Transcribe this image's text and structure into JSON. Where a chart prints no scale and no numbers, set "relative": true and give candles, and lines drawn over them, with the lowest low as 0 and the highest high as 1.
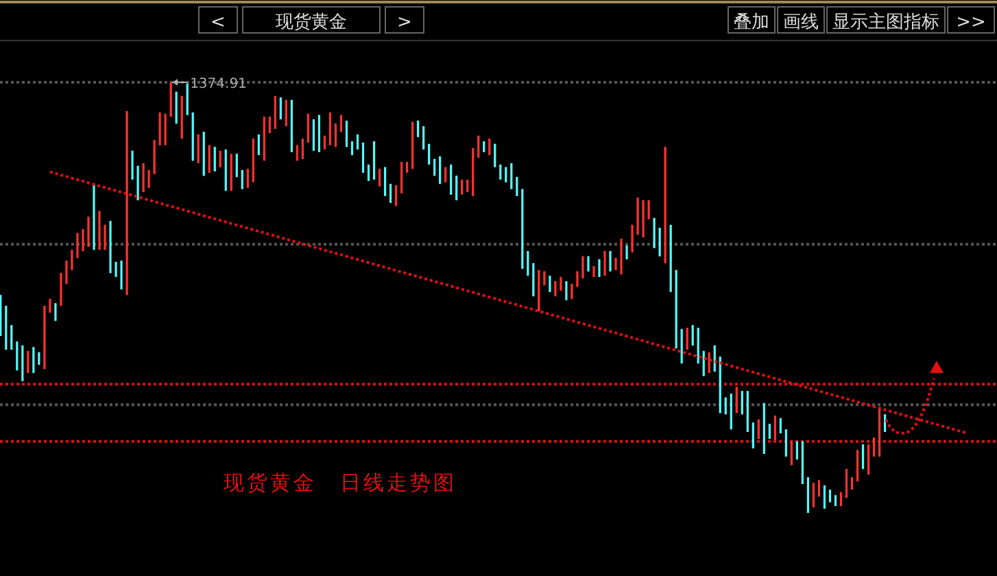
{
  "chart_data": {
    "type": "candlestick",
    "title": "现货黄金",
    "relative": true,
    "categories": [
      null,
      null,
      null,
      null,
      null,
      null,
      null,
      null,
      null,
      null,
      null,
      null,
      null,
      null,
      null,
      null,
      null,
      null,
      null,
      null,
      null,
      null,
      null,
      null,
      null,
      null,
      null,
      null,
      null,
      null,
      null,
      null,
      null,
      null,
      null,
      null,
      null,
      null,
      null,
      null,
      null,
      null,
      null,
      null,
      null,
      null,
      null,
      null,
      null,
      null,
      null,
      null,
      null,
      null,
      null,
      null,
      null,
      null,
      null,
      null,
      null,
      null,
      null,
      null,
      null,
      null,
      null,
      null,
      null,
      null,
      null,
      null,
      null,
      null,
      null,
      null,
      null,
      null,
      null,
      null,
      null,
      null,
      null,
      null,
      null,
      null,
      null,
      null,
      null,
      null,
      null,
      null,
      null,
      null,
      null,
      null,
      null,
      null,
      null,
      null,
      null,
      null,
      null,
      null,
      null,
      null,
      null,
      null,
      null,
      null,
      null,
      null,
      null,
      null,
      null,
      null,
      null,
      null,
      null,
      null,
      null,
      null,
      null,
      null,
      null,
      null,
      null,
      null,
      null,
      null,
      null,
      null,
      null,
      null,
      null,
      null,
      null,
      null,
      null,
      null,
      null,
      null,
      null,
      null,
      null,
      null,
      null,
      null,
      null,
      null,
      null,
      null,
      null,
      null,
      null,
      null,
      null,
      null,
      null,
      null,
      null,
      null,
      null,
      null,
      null,
      null,
      null,
      null,
      null,
      null,
      null,
      null,
      null,
      null,
      null,
      null,
      null
    ],
    "colors": [
      "#54fcfc",
      "#54fcfc",
      "#54fcfc",
      "#54fcfc",
      "#54fcfc",
      "#ff3232",
      "#54fcfc",
      "#54fcfc",
      "#ff3232",
      "#ff3232",
      "#54fcfc",
      "#ff3232",
      "#ff3232",
      "#ff3232",
      "#ff3232",
      "#ff3232",
      "#ff3232",
      "#54fcfc",
      "#ff3232",
      "#ff3232",
      "#54fcfc",
      "#54fcfc",
      "#54fcfc",
      "#ff3232",
      "#54fcfc",
      "#54fcfc",
      "#ff3232",
      "#ff3232",
      "#ff3232",
      "#ff3232",
      "#ff3232",
      "#ff3232",
      "#54fcfc",
      "#ff3232",
      "#54fcfc",
      "#54fcfc",
      "#ff3232",
      "#54fcfc",
      "#ff3232",
      "#54fcfc",
      "#ff3232",
      "#54fcfc",
      "#ff3232",
      "#54fcfc",
      "#54fcfc",
      "#ff3232",
      "#ff3232",
      "#54fcfc",
      "#ff3232",
      "#ff3232",
      "#ff3232",
      "#54fcfc",
      "#ff3232",
      "#54fcfc",
      "#ff3232",
      "#ff3232",
      "#ff3232",
      "#54fcfc",
      "#54fcfc",
      "#ff3232",
      "#ff3232",
      "#ff3232",
      "#ff3232",
      "#54fcfc",
      "#54fcfc",
      "#54fcfc",
      "#54fcfc",
      "#54fcfc",
      "#54fcfc",
      "#ff3232",
      "#54fcfc",
      "#54fcfc",
      "#ff3232",
      "#ff3232",
      "#ff3232",
      "#ff3232",
      "#54fcfc",
      "#54fcfc",
      "#54fcfc",
      "#54fcfc",
      "#54fcfc",
      "#ff3232",
      "#54fcfc",
      "#54fcfc",
      "#ff3232",
      "#ff3232",
      "#ff3232",
      "#ff3232",
      "#54fcfc",
      "#ff3232",
      "#54fcfc",
      "#54fcfc",
      "#54fcfc",
      "#54fcfc",
      "#54fcfc",
      "#54fcfc",
      "#54fcfc",
      "#54fcfc",
      "#ff3232",
      "#ff3232",
      "#54fcfc",
      "#ff3232",
      "#ff3232",
      "#54fcfc",
      "#ff3232",
      "#ff3232",
      "#ff3232",
      "#54fcfc",
      "#ff3232",
      "#54fcfc",
      "#ff3232",
      "#54fcfc",
      "#ff3232",
      "#ff3232",
      "#54fcfc",
      "#ff3232",
      "#ff3232",
      "#ff3232",
      "#ff3232",
      "#54fcfc",
      "#54fcfc",
      "#ff3232",
      "#54fcfc",
      "#54fcfc",
      "#54fcfc",
      "#ff3232",
      "#54fcfc",
      "#54fcfc",
      "#54fcfc",
      "#ff3232",
      "#54fcfc",
      "#54fcfc",
      "#54fcfc",
      "#54fcfc",
      "#ff3232",
      "#54fcfc",
      "#54fcfc",
      "#54fcfc",
      "#ff3232",
      "#54fcfc",
      "#54fcfc",
      "#ff3232",
      "#54fcfc",
      "#54fcfc",
      "#ff3232",
      "#54fcfc",
      "#54fcfc",
      "#54fcfc",
      "#ff3232",
      "#ff3232",
      "#54fcfc",
      "#54fcfc",
      "#54fcfc",
      "#ff3232",
      "#ff3232",
      "#ff3232",
      "#ff3232",
      "#54fcfc",
      "#ff3232",
      "#ff3232",
      "#ff3232",
      "#54fcfc",
      null,
      null,
      null,
      null,
      null,
      null,
      null,
      null,
      null,
      null,
      null,
      null,
      null,
      null,
      null
    ],
    "ohlc": [
      [
        0.506,
        0.506,
        0.411,
        0.411
      ],
      [
        0.481,
        0.481,
        0.379,
        0.379
      ],
      [
        0.436,
        0.436,
        0.379,
        0.379
      ],
      [
        0.398,
        0.398,
        0.331,
        0.331
      ],
      [
        0.389,
        0.389,
        0.306,
        0.306
      ],
      [
        0.325,
        0.376,
        0.325,
        0.376
      ],
      [
        0.385,
        0.385,
        0.325,
        0.325
      ],
      [
        0.373,
        0.373,
        0.344,
        0.344
      ],
      [
        0.334,
        0.481,
        0.334,
        0.481
      ],
      [
        0.465,
        0.497,
        0.465,
        0.497
      ],
      [
        0.487,
        0.487,
        0.446,
        0.446
      ],
      [
        0.481,
        0.557,
        0.481,
        0.557
      ],
      [
        0.532,
        0.586,
        0.532,
        0.586
      ],
      [
        0.564,
        0.611,
        0.564,
        0.611
      ],
      [
        0.592,
        0.65,
        0.592,
        0.65
      ],
      [
        0.608,
        0.659,
        0.608,
        0.659
      ],
      [
        0.618,
        0.688,
        0.618,
        0.688
      ],
      [
        0.764,
        0.764,
        0.611,
        0.611
      ],
      [
        0.611,
        0.701,
        0.611,
        0.701
      ],
      [
        0.611,
        0.669,
        0.611,
        0.669
      ],
      [
        0.678,
        0.678,
        0.557,
        0.557
      ],
      [
        0.583,
        0.583,
        0.548,
        0.548
      ],
      [
        0.586,
        0.586,
        0.519,
        0.519
      ],
      [
        0.506,
        0.933,
        0.506,
        0.933
      ],
      [
        0.841,
        0.841,
        0.774,
        0.774
      ],
      [
        0.806,
        0.806,
        0.726,
        0.726
      ],
      [
        0.745,
        0.812,
        0.745,
        0.812
      ],
      [
        0.755,
        0.796,
        0.755,
        0.796
      ],
      [
        0.787,
        0.866,
        0.787,
        0.866
      ],
      [
        0.854,
        0.93,
        0.854,
        0.93
      ],
      [
        0.854,
        0.927,
        0.854,
        0.927
      ],
      [
        0.92,
        1.0,
        0.92,
        1.0
      ],
      [
        0.978,
        0.978,
        0.904,
        0.904
      ],
      [
        0.869,
        0.968,
        0.869,
        0.968
      ],
      [
        0.997,
        0.997,
        0.924,
        0.924
      ],
      [
        0.93,
        0.93,
        0.818,
        0.818
      ],
      [
        0.812,
        0.879,
        0.812,
        0.879
      ],
      [
        0.885,
        0.885,
        0.783,
        0.783
      ],
      [
        0.79,
        0.854,
        0.79,
        0.854
      ],
      [
        0.85,
        0.85,
        0.793,
        0.793
      ],
      [
        0.803,
        0.841,
        0.803,
        0.841
      ],
      [
        0.844,
        0.844,
        0.748,
        0.748
      ],
      [
        0.748,
        0.834,
        0.748,
        0.834
      ],
      [
        0.834,
        0.834,
        0.78,
        0.78
      ],
      [
        0.796,
        0.796,
        0.752,
        0.752
      ],
      [
        0.755,
        0.799,
        0.755,
        0.799
      ],
      [
        0.768,
        0.869,
        0.768,
        0.869
      ],
      [
        0.879,
        0.879,
        0.831,
        0.831
      ],
      [
        0.818,
        0.92,
        0.818,
        0.92
      ],
      [
        0.882,
        0.92,
        0.882,
        0.92
      ],
      [
        0.892,
        0.968,
        0.892,
        0.968
      ],
      [
        0.965,
        0.965,
        0.914,
        0.914
      ],
      [
        0.898,
        0.959,
        0.898,
        0.959
      ],
      [
        0.959,
        0.959,
        0.838,
        0.838
      ],
      [
        0.818,
        0.854,
        0.818,
        0.854
      ],
      [
        0.822,
        0.869,
        0.822,
        0.869
      ],
      [
        0.86,
        0.927,
        0.86,
        0.927
      ],
      [
        0.914,
        0.914,
        0.841,
        0.841
      ],
      [
        0.924,
        0.924,
        0.838,
        0.838
      ],
      [
        0.844,
        0.876,
        0.844,
        0.876
      ],
      [
        0.854,
        0.93,
        0.854,
        0.93
      ],
      [
        0.85,
        0.904,
        0.85,
        0.904
      ],
      [
        0.885,
        0.924,
        0.885,
        0.924
      ],
      [
        0.911,
        0.911,
        0.85,
        0.85
      ],
      [
        0.863,
        0.863,
        0.831,
        0.831
      ],
      [
        0.879,
        0.879,
        0.844,
        0.844
      ],
      [
        0.86,
        0.86,
        0.79,
        0.79
      ],
      [
        0.809,
        0.809,
        0.771,
        0.771
      ],
      [
        0.863,
        0.863,
        0.774,
        0.774
      ],
      [
        0.758,
        0.799,
        0.758,
        0.799
      ],
      [
        0.803,
        0.803,
        0.736,
        0.736
      ],
      [
        0.764,
        0.764,
        0.72,
        0.72
      ],
      [
        0.713,
        0.761,
        0.713,
        0.761
      ],
      [
        0.742,
        0.815,
        0.742,
        0.815
      ],
      [
        0.79,
        0.815,
        0.79,
        0.815
      ],
      [
        0.799,
        0.908,
        0.799,
        0.908
      ],
      [
        0.911,
        0.911,
        0.873,
        0.873
      ],
      [
        0.898,
        0.898,
        0.844,
        0.844
      ],
      [
        0.857,
        0.857,
        0.809,
        0.809
      ],
      [
        0.822,
        0.822,
        0.783,
        0.783
      ],
      [
        0.828,
        0.828,
        0.764,
        0.764
      ],
      [
        0.768,
        0.803,
        0.768,
        0.803
      ],
      [
        0.809,
        0.809,
        0.739,
        0.739
      ],
      [
        0.783,
        0.783,
        0.726,
        0.726
      ],
      [
        0.739,
        0.774,
        0.739,
        0.774
      ],
      [
        0.745,
        0.774,
        0.745,
        0.774
      ],
      [
        0.736,
        0.847,
        0.736,
        0.847
      ],
      [
        0.825,
        0.876,
        0.825,
        0.876
      ],
      [
        0.863,
        0.863,
        0.838,
        0.838
      ],
      [
        0.831,
        0.869,
        0.831,
        0.869
      ],
      [
        0.857,
        0.857,
        0.803,
        0.803
      ],
      [
        0.809,
        0.809,
        0.774,
        0.774
      ],
      [
        0.803,
        0.803,
        0.768,
        0.768
      ],
      [
        0.812,
        0.812,
        0.752,
        0.752
      ],
      [
        0.78,
        0.78,
        0.736,
        0.736
      ],
      [
        0.752,
        0.752,
        0.567,
        0.567
      ],
      [
        0.608,
        0.608,
        0.551,
        0.551
      ],
      [
        0.58,
        0.58,
        0.503,
        0.503
      ],
      [
        0.468,
        0.564,
        0.468,
        0.564
      ],
      [
        0.529,
        0.561,
        0.529,
        0.561
      ],
      [
        0.551,
        0.551,
        0.513,
        0.513
      ],
      [
        0.503,
        0.538,
        0.503,
        0.538
      ],
      [
        0.516,
        0.548,
        0.516,
        0.548
      ],
      [
        0.538,
        0.538,
        0.494,
        0.494
      ],
      [
        0.497,
        0.532,
        0.497,
        0.532
      ],
      [
        0.525,
        0.561,
        0.525,
        0.561
      ],
      [
        0.545,
        0.596,
        0.545,
        0.596
      ],
      [
        0.596,
        0.596,
        0.561,
        0.561
      ],
      [
        0.548,
        0.573,
        0.548,
        0.573
      ],
      [
        0.589,
        0.589,
        0.548,
        0.548
      ],
      [
        0.551,
        0.608,
        0.551,
        0.608
      ],
      [
        0.608,
        0.608,
        0.561,
        0.561
      ],
      [
        0.564,
        0.592,
        0.564,
        0.592
      ],
      [
        0.554,
        0.637,
        0.554,
        0.637
      ],
      [
        0.621,
        0.621,
        0.589,
        0.589
      ],
      [
        0.605,
        0.669,
        0.605,
        0.669
      ],
      [
        0.646,
        0.732,
        0.646,
        0.732
      ],
      [
        0.64,
        0.726,
        0.64,
        0.726
      ],
      [
        0.682,
        0.726,
        0.682,
        0.726
      ],
      [
        0.685,
        0.685,
        0.615,
        0.615
      ],
      [
        0.662,
        0.662,
        0.596,
        0.596
      ],
      [
        0.58,
        0.85,
        0.58,
        0.85
      ],
      [
        0.669,
        0.669,
        0.513,
        0.513
      ],
      [
        0.564,
        0.564,
        0.382,
        0.382
      ],
      [
        0.427,
        0.427,
        0.347,
        0.347
      ],
      [
        0.379,
        0.43,
        0.379,
        0.43
      ],
      [
        0.436,
        0.436,
        0.389,
        0.389
      ],
      [
        0.43,
        0.43,
        0.347,
        0.347
      ],
      [
        0.376,
        0.376,
        0.318,
        0.318
      ],
      [
        0.325,
        0.373,
        0.325,
        0.373
      ],
      [
        0.389,
        0.389,
        0.328,
        0.328
      ],
      [
        0.363,
        0.363,
        0.232,
        0.232
      ],
      [
        0.268,
        0.268,
        0.229,
        0.229
      ],
      [
        0.277,
        0.277,
        0.194,
        0.194
      ],
      [
        0.232,
        0.293,
        0.232,
        0.293
      ],
      [
        0.283,
        0.283,
        0.229,
        0.229
      ],
      [
        0.283,
        0.283,
        0.188,
        0.188
      ],
      [
        0.21,
        0.21,
        0.15,
        0.15
      ],
      [
        0.172,
        0.217,
        0.172,
        0.217
      ],
      [
        0.255,
        0.255,
        0.137,
        0.137
      ],
      [
        0.207,
        0.207,
        0.172,
        0.172
      ],
      [
        0.169,
        0.226,
        0.169,
        0.226
      ],
      [
        0.22,
        0.22,
        0.185,
        0.185
      ],
      [
        0.194,
        0.194,
        0.131,
        0.131
      ],
      [
        0.111,
        0.166,
        0.111,
        0.166
      ],
      [
        0.166,
        0.166,
        0.124,
        0.124
      ],
      [
        0.166,
        0.166,
        0.067,
        0.067
      ],
      [
        0.083,
        0.083,
        0.0,
        0.0
      ],
      [
        0.013,
        0.07,
        0.013,
        0.07
      ],
      [
        0.038,
        0.076,
        0.038,
        0.076
      ],
      [
        0.064,
        0.064,
        0.01,
        0.01
      ],
      [
        0.054,
        0.054,
        0.025,
        0.025
      ],
      [
        0.041,
        0.041,
        0.016,
        0.016
      ],
      [
        0.016,
        0.048,
        0.016,
        0.048
      ],
      [
        0.035,
        0.102,
        0.035,
        0.102
      ],
      [
        0.054,
        0.083,
        0.054,
        0.083
      ],
      [
        0.073,
        0.146,
        0.073,
        0.146
      ],
      [
        0.159,
        0.159,
        0.102,
        0.102
      ],
      [
        0.089,
        0.159,
        0.089,
        0.159
      ],
      [
        0.131,
        0.175,
        0.131,
        0.175
      ],
      [
        0.131,
        0.245,
        0.131,
        0.245
      ],
      [
        0.229,
        0.229,
        0.188,
        0.188
      ],
      null,
      null,
      null,
      null,
      null,
      null,
      null,
      null,
      null,
      null,
      null,
      null,
      null,
      null,
      null
    ],
    "series": [
      {
        "type": "line",
        "values": [
          null,
          null,
          null,
          null,
          null,
          null,
          null,
          null,
          null,
          0.792,
          null,
          null,
          null,
          null,
          null,
          null,
          null,
          null,
          null,
          null,
          null,
          null,
          null,
          null,
          null,
          null,
          null,
          null,
          null,
          null,
          null,
          null,
          null,
          null,
          null,
          null,
          null,
          null,
          null,
          null,
          null,
          null,
          null,
          null,
          null,
          null,
          null,
          null,
          null,
          null,
          null,
          null,
          null,
          null,
          null,
          null,
          null,
          null,
          null,
          null,
          null,
          null,
          null,
          null,
          null,
          null,
          null,
          null,
          null,
          null,
          null,
          null,
          null,
          null,
          null,
          null,
          null,
          null,
          null,
          null,
          null,
          null,
          null,
          null,
          null,
          null,
          null,
          null,
          null,
          null,
          null,
          null,
          null,
          null,
          null,
          null,
          null,
          null,
          null,
          null,
          null,
          null,
          null,
          null,
          null,
          null,
          null,
          null,
          null,
          null,
          null,
          null,
          null,
          null,
          null,
          null,
          null,
          null,
          null,
          null,
          null,
          null,
          null,
          null,
          null,
          null,
          null,
          null,
          null,
          null,
          null,
          null,
          null,
          null,
          null,
          null,
          null,
          null,
          null,
          null,
          null,
          null,
          null,
          null,
          null,
          null,
          null,
          null,
          null,
          null,
          null,
          null,
          null,
          null,
          null,
          null,
          null,
          null,
          null,
          null,
          null,
          null,
          null,
          null,
          null,
          null,
          null,
          null,
          null,
          null,
          null,
          null,
          null,
          null,
          null,
          null,
          0.185
        ],
        "color": "#e01010",
        "line_style": "dotted"
      }
    ],
    "ref_lines": [
      {
        "axis": "y",
        "value": 1.0,
        "color": "#555555",
        "line_style": "dotted"
      },
      {
        "axis": "y",
        "value": 0.624,
        "color": "#555555",
        "line_style": "dotted"
      },
      {
        "axis": "y",
        "value": 0.251,
        "color": "#555555",
        "line_style": "dotted"
      },
      {
        "axis": "y",
        "value": 0.299,
        "color": "#e01010",
        "line_style": "dotted"
      },
      {
        "axis": "y",
        "value": 0.166,
        "color": "#e01010",
        "line_style": "dotted"
      }
    ],
    "annotations": [
      "<",
      ">",
      "叠加",
      "画线",
      "显示主图指标",
      ">>",
      "1374.91",
      "现货黄金　日线走势图"
    ]
  }
}
